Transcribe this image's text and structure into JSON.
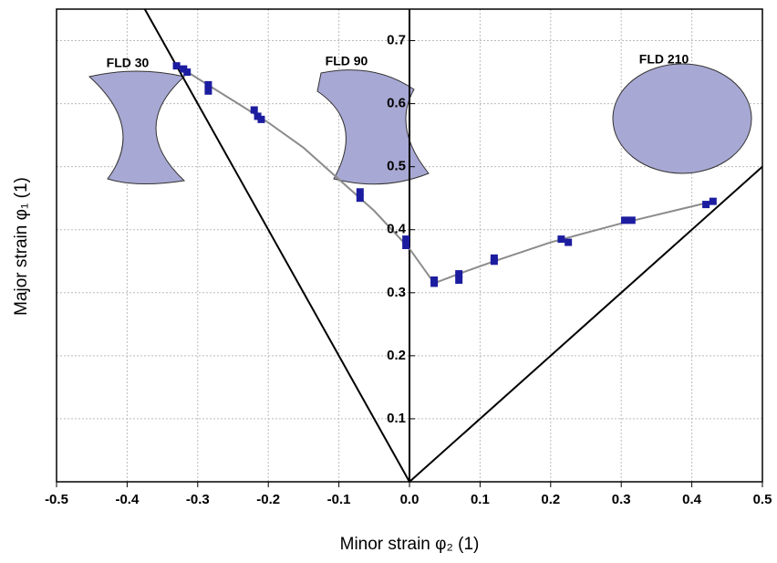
{
  "chart_data": {
    "type": "scatter",
    "x_label": "Minor strain φ₂ (1)",
    "y_label": "Major strain φ₁ (1)",
    "xlim": [
      -0.5,
      0.5
    ],
    "ylim": [
      0,
      0.75
    ],
    "xticks": [
      -0.5,
      -0.4,
      -0.3,
      -0.2,
      -0.1,
      {
        "value": 0,
        "label": "0.0"
      },
      0.1,
      0.2,
      0.3,
      0.4,
      0.5
    ],
    "yticks": [
      0.1,
      0.2,
      0.3,
      0.4,
      0.5,
      0.6,
      0.7
    ],
    "grid": true,
    "annotations": [
      "FLD 30",
      "FLD 90",
      "FLD 210"
    ],
    "series": [
      {
        "type": "line",
        "color": "#000000",
        "x": [
          -0.375,
          0
        ],
        "values": [
          0.75,
          0
        ]
      },
      {
        "type": "line",
        "color": "#000000",
        "x": [
          0,
          0.5
        ],
        "values": [
          0,
          0.5
        ]
      },
      {
        "type": "line",
        "color": "#8c8c8c",
        "x": [
          -0.335,
          -0.3,
          -0.25,
          -0.2,
          -0.15,
          -0.1,
          -0.05,
          0,
          0.035,
          0.07,
          0.12,
          0.2,
          0.3,
          0.43
        ],
        "values": [
          0.665,
          0.64,
          0.605,
          0.57,
          0.53,
          0.48,
          0.43,
          0.37,
          0.315,
          0.33,
          0.35,
          0.38,
          0.41,
          0.445
        ]
      },
      {
        "type": "scatter",
        "color": "#1c1ca0",
        "x": [
          -0.33,
          -0.32,
          -0.315,
          -0.285,
          -0.285,
          -0.22,
          -0.215,
          -0.21,
          -0.07,
          -0.07,
          -0.005,
          -0.005,
          0.035,
          0.035,
          0.07,
          0.07,
          0.12,
          0.12,
          0.215,
          0.225,
          0.305,
          0.315,
          0.42,
          0.43
        ],
        "values": [
          0.66,
          0.655,
          0.65,
          0.63,
          0.62,
          0.59,
          0.58,
          0.575,
          0.46,
          0.45,
          0.385,
          0.375,
          0.32,
          0.315,
          0.33,
          0.32,
          0.355,
          0.35,
          0.385,
          0.38,
          0.415,
          0.415,
          0.44,
          0.445
        ]
      }
    ]
  }
}
